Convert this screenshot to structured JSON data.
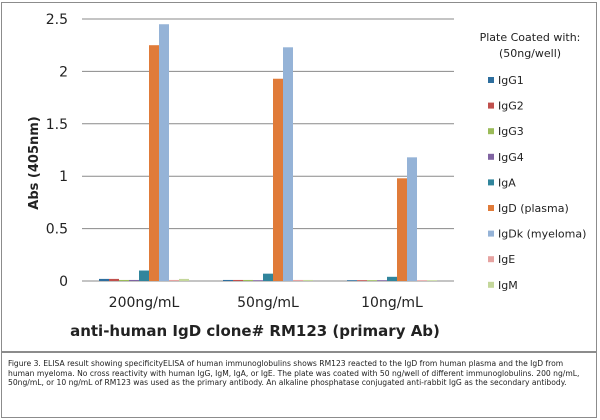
{
  "chart_data": {
    "type": "bar",
    "categories": [
      "200ng/mL",
      "50ng/mL",
      "10ng/mL"
    ],
    "series": [
      {
        "name": "IgG1",
        "color": "#2e6e9e",
        "values": [
          0.02,
          0.01,
          0.0
        ]
      },
      {
        "name": "IgG2",
        "color": "#c0504d",
        "values": [
          0.02,
          0.01,
          0.0
        ]
      },
      {
        "name": "IgG3",
        "color": "#9bbb59",
        "values": [
          0.01,
          0.01,
          0.0
        ]
      },
      {
        "name": "IgG4",
        "color": "#8064a2",
        "values": [
          0.01,
          0.0,
          0.0
        ]
      },
      {
        "name": "IgA",
        "color": "#31859c",
        "values": [
          0.1,
          0.07,
          0.04
        ]
      },
      {
        "name": "IgD (plasma)",
        "color": "#e07b39",
        "values": [
          2.25,
          1.93,
          0.98
        ]
      },
      {
        "name": "IgDk (myeloma)",
        "color": "#95b3d7",
        "values": [
          2.45,
          2.23,
          1.18
        ]
      },
      {
        "name": "IgE",
        "color": "#e6a3a1",
        "values": [
          0.01,
          0.01,
          0.0
        ]
      },
      {
        "name": "IgM",
        "color": "#c4d79b",
        "values": [
          0.02,
          0.01,
          0.0
        ]
      }
    ],
    "ylabel": "Abs (405nm)",
    "xlabel": "anti-human IgD clone# RM123 (primary Ab)",
    "ylim": [
      0,
      2.5
    ],
    "yticks": [
      "0",
      "0.5",
      "1",
      "1.5",
      "2",
      "2.5"
    ],
    "grid": true,
    "legend_title_line1": "Plate Coated with:",
    "legend_title_line2": "(50ng/well)",
    "legend_position": "right"
  },
  "caption": "Figure 3. ELISA result showing specificityELISA of human immunoglobulins shows RM123 reacted to the IgD from human plasma and the IgD from human myeloma. No cross reactivity with human IgG, IgM, IgA, or IgE. The plate was coated with 50 ng/well of different immunoglobulins. 200 ng/mL, 50ng/mL, or 10 ng/mL of RM123 was used as the primary antibody. An alkaline phosphatase conjugated anti-rabbit IgG as the secondary antibody."
}
